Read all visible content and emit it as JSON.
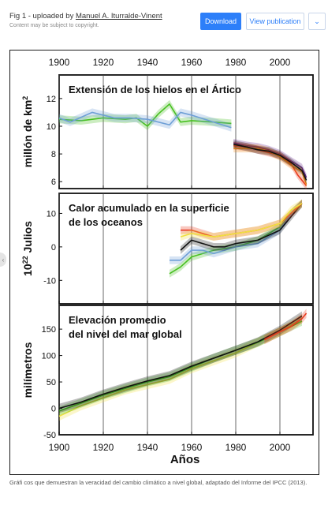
{
  "header": {
    "title_prefix": "Fig 1 - uploaded by",
    "author": "Manuel A. Iturralde-Vinent",
    "copyright_note": "Content may be subject to copyright.",
    "download_label": "Download",
    "view_publication_label": "View publication",
    "more_icon": "chevron-down-icon"
  },
  "caption": "Gráfi cos que demuestran la veracidad del cambio climático a nivel global, adaptado del Informe del IPCC (2013).",
  "chart_data": {
    "type": "line",
    "x_label": "Años",
    "x_ticks": [
      "1900",
      "1920",
      "1940",
      "1960",
      "1980",
      "2000"
    ],
    "colors": {
      "black": "#111111",
      "blue": "#6e9fd6",
      "green": "#47c020",
      "red": "#e83a1e",
      "yellow": "#f0e040",
      "purple": "#6a2c91",
      "orange": "#f08a1a",
      "grey": "#999999"
    },
    "panels": [
      {
        "title_line1": "Extensión de los hielos en el Ártico",
        "title_line2": "",
        "ylabel_main": "millón de km",
        "ylabel_sup": "2",
        "ylim": [
          5.5,
          13.7
        ],
        "yticks": [
          "6",
          "8",
          "10",
          "12"
        ],
        "series": [
          {
            "color": "green",
            "x": [
              1900,
              1910,
              1920,
              1930,
              1935,
              1940,
              1945,
              1950,
              1955,
              1960,
              1970,
              1978
            ],
            "y": [
              10.5,
              10.4,
              10.6,
              10.5,
              10.6,
              10.0,
              10.9,
              11.6,
              10.3,
              10.4,
              10.3,
              10.2
            ]
          },
          {
            "color": "blue",
            "x": [
              1900,
              1905,
              1915,
              1925,
              1932,
              1940,
              1950,
              1955,
              1960,
              1970,
              1978
            ],
            "y": [
              10.6,
              10.3,
              11.0,
              10.6,
              10.6,
              10.5,
              10.1,
              11.0,
              10.8,
              10.3,
              9.9
            ]
          },
          {
            "color": "purple",
            "x": [
              1979,
              1985,
              1990,
              1995,
              2000,
              2005,
              2010,
              2012
            ],
            "y": [
              8.8,
              8.6,
              8.5,
              8.3,
              8.0,
              7.5,
              7.0,
              6.3
            ]
          },
          {
            "color": "red",
            "x": [
              1979,
              1985,
              1990,
              1995,
              2000,
              2005,
              2008,
              2012
            ],
            "y": [
              8.6,
              8.5,
              8.3,
              8.1,
              7.9,
              7.3,
              6.5,
              5.7
            ]
          },
          {
            "color": "orange",
            "x": [
              1979,
              1985,
              1990,
              1995,
              2000,
              2005,
              2010,
              2012
            ],
            "y": [
              8.4,
              8.4,
              8.4,
              8.2,
              7.8,
              7.2,
              6.7,
              5.8
            ]
          },
          {
            "color": "black",
            "x": [
              1979,
              1985,
              1990,
              1995,
              2000,
              2005,
              2010,
              2012
            ],
            "y": [
              8.7,
              8.5,
              8.3,
              8.2,
              7.9,
              7.4,
              6.8,
              6.1
            ]
          }
        ]
      },
      {
        "title_line1": "Calor acumulado en la superficie",
        "title_line2": "de los oceanos",
        "ylabel_main": "10",
        "ylabel_sup": "22",
        "ylabel_rest": " Julios",
        "ylim": [
          -17,
          16
        ],
        "yticks": [
          "-10",
          "0",
          "10"
        ],
        "series": [
          {
            "color": "green",
            "x": [
              1950,
              1955,
              1960,
              1965,
              1970,
              1980,
              1990,
              2000,
              2005,
              2010
            ],
            "y": [
              -8,
              -6,
              -3,
              -2,
              -1,
              0,
              2,
              6,
              10,
              13
            ]
          },
          {
            "color": "blue",
            "x": [
              1950,
              1955,
              1960,
              1965,
              1970,
              1980,
              1990,
              2000,
              2005,
              2010
            ],
            "y": [
              -4,
              -4,
              -1,
              -1,
              -2,
              0,
              1,
              5,
              10,
              13
            ]
          },
          {
            "color": "black",
            "x": [
              1955,
              1960,
              1965,
              1970,
              1975,
              1980,
              1990,
              2000,
              2005,
              2010
            ],
            "y": [
              -1,
              2,
              1,
              0,
              0,
              1,
              2,
              5,
              9,
              13
            ]
          },
          {
            "color": "red",
            "x": [
              1955,
              1960,
              1970,
              1980,
              1990,
              2000,
              2005,
              2010
            ],
            "y": [
              5,
              5,
              3,
              4,
              5,
              7,
              10,
              13
            ]
          },
          {
            "color": "yellow",
            "x": [
              1955,
              1960,
              1970,
              1980,
              1990,
              2000,
              2005,
              2010
            ],
            "y": [
              3,
              4,
              3,
              4,
              5,
              7,
              11,
              13
            ]
          }
        ]
      },
      {
        "title_line1": "Elevación promedio",
        "title_line2": "del nivel del mar global",
        "ylabel_main": "milímetros",
        "ylim": [
          -50,
          195
        ],
        "yticks": [
          "-50",
          "0",
          "50",
          "100",
          "150"
        ],
        "series": [
          {
            "color": "yellow",
            "x": [
              1900,
              1910,
              1920,
              1930,
              1940,
              1950,
              1960,
              1970,
              1980,
              1990,
              2000,
              2010
            ],
            "y": [
              -15,
              5,
              20,
              35,
              45,
              55,
              75,
              90,
              105,
              125,
              145,
              170
            ]
          },
          {
            "color": "green",
            "x": [
              1900,
              1910,
              1920,
              1930,
              1940,
              1950,
              1960,
              1970,
              1980,
              1990,
              2000,
              2010
            ],
            "y": [
              -5,
              10,
              25,
              38,
              50,
              60,
              78,
              95,
              110,
              125,
              145,
              165
            ]
          },
          {
            "color": "black",
            "x": [
              1900,
              1910,
              1920,
              1930,
              1940,
              1950,
              1960,
              1970,
              1980,
              1990,
              2000,
              2010
            ],
            "y": [
              0,
              12,
              27,
              40,
              52,
              62,
              80,
              95,
              110,
              126,
              148,
              175
            ]
          },
          {
            "color": "red",
            "x": [
              1993,
              2000,
              2005,
              2010,
              2012
            ],
            "y": [
              130,
              145,
              155,
              170,
              180
            ]
          }
        ]
      }
    ]
  }
}
